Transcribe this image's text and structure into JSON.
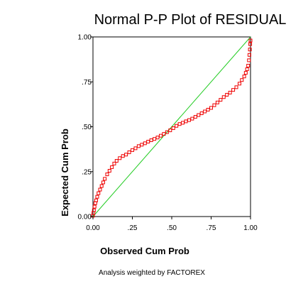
{
  "chart_data": {
    "type": "scatter",
    "title": "Normal P-P Plot of RESIDUAL",
    "xlabel": "Observed Cum Prob",
    "ylabel": "Expected Cum Prob",
    "note": "Analysis weighted by FACTOREX",
    "xlim": [
      0,
      1
    ],
    "ylim": [
      0,
      1
    ],
    "x_ticks": [
      {
        "value": 0.0,
        "label": "0.00"
      },
      {
        "value": 0.25,
        "label": ".25"
      },
      {
        "value": 0.5,
        "label": ".50"
      },
      {
        "value": 0.75,
        "label": ".75"
      },
      {
        "value": 1.0,
        "label": "1.00"
      }
    ],
    "y_ticks": [
      {
        "value": 0.0,
        "label": "0.00"
      },
      {
        "value": 0.25,
        "label": ".25"
      },
      {
        "value": 0.5,
        "label": ".50"
      },
      {
        "value": 0.75,
        "label": ".75"
      },
      {
        "value": 1.0,
        "label": "1.00"
      }
    ],
    "grid": false,
    "reference_line": {
      "x": [
        0,
        1
      ],
      "y": [
        0,
        1
      ],
      "color": "#22cc22"
    },
    "marker_color": "#ee0000",
    "series": [
      {
        "points": [
          [
            0.0,
            0.005
          ],
          [
            0.003,
            0.02
          ],
          [
            0.006,
            0.035
          ],
          [
            0.01,
            0.055
          ],
          [
            0.015,
            0.075
          ],
          [
            0.02,
            0.09
          ],
          [
            0.027,
            0.11
          ],
          [
            0.035,
            0.13
          ],
          [
            0.045,
            0.15
          ],
          [
            0.055,
            0.17
          ],
          [
            0.065,
            0.19
          ],
          [
            0.075,
            0.21
          ],
          [
            0.09,
            0.235
          ],
          [
            0.105,
            0.255
          ],
          [
            0.12,
            0.275
          ],
          [
            0.135,
            0.295
          ],
          [
            0.15,
            0.31
          ],
          [
            0.17,
            0.325
          ],
          [
            0.19,
            0.337
          ],
          [
            0.21,
            0.345
          ],
          [
            0.23,
            0.358
          ],
          [
            0.25,
            0.37
          ],
          [
            0.27,
            0.38
          ],
          [
            0.29,
            0.392
          ],
          [
            0.31,
            0.4
          ],
          [
            0.33,
            0.408
          ],
          [
            0.35,
            0.417
          ],
          [
            0.37,
            0.425
          ],
          [
            0.39,
            0.432
          ],
          [
            0.41,
            0.44
          ],
          [
            0.43,
            0.45
          ],
          [
            0.45,
            0.46
          ],
          [
            0.47,
            0.47
          ],
          [
            0.49,
            0.48
          ],
          [
            0.51,
            0.492
          ],
          [
            0.53,
            0.505
          ],
          [
            0.55,
            0.515
          ],
          [
            0.57,
            0.522
          ],
          [
            0.59,
            0.53
          ],
          [
            0.61,
            0.537
          ],
          [
            0.63,
            0.545
          ],
          [
            0.65,
            0.555
          ],
          [
            0.67,
            0.565
          ],
          [
            0.69,
            0.575
          ],
          [
            0.71,
            0.585
          ],
          [
            0.73,
            0.595
          ],
          [
            0.75,
            0.605
          ],
          [
            0.77,
            0.62
          ],
          [
            0.79,
            0.635
          ],
          [
            0.81,
            0.65
          ],
          [
            0.83,
            0.665
          ],
          [
            0.85,
            0.678
          ],
          [
            0.87,
            0.69
          ],
          [
            0.89,
            0.705
          ],
          [
            0.91,
            0.72
          ],
          [
            0.93,
            0.74
          ],
          [
            0.945,
            0.76
          ],
          [
            0.96,
            0.78
          ],
          [
            0.97,
            0.8
          ],
          [
            0.978,
            0.82
          ],
          [
            0.985,
            0.84
          ],
          [
            0.99,
            0.87
          ],
          [
            0.993,
            0.9
          ],
          [
            0.996,
            0.93
          ],
          [
            0.998,
            0.96
          ],
          [
            1.0,
            0.98
          ]
        ]
      }
    ]
  }
}
